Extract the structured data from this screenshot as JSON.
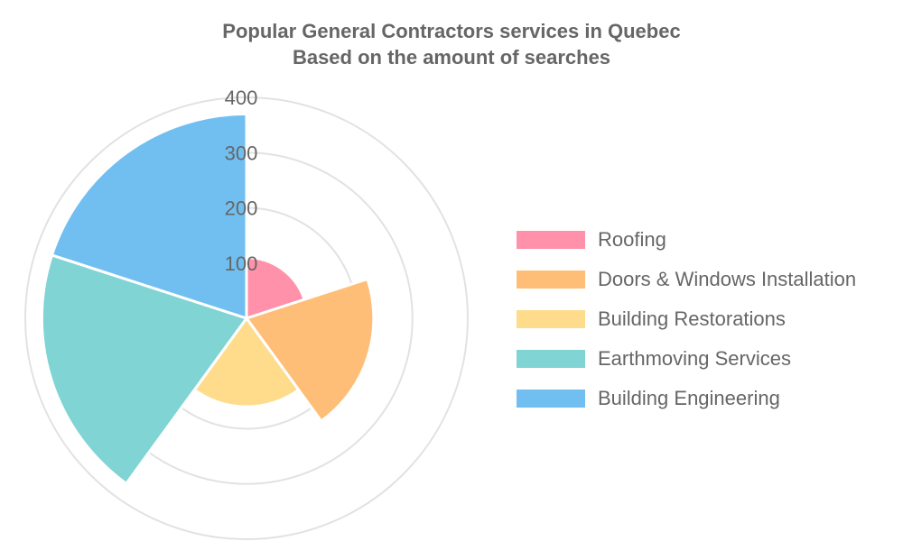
{
  "chart_data": {
    "type": "polarArea",
    "title": [
      "Popular General Contractors services in Quebec",
      "Based on the amount of searches"
    ],
    "rlim": [
      0,
      400
    ],
    "r_ticks": [
      100,
      200,
      300,
      400
    ],
    "grid": true,
    "legend_position": "right",
    "start_angle": "top",
    "direction": "clockwise",
    "categories": [
      "Roofing",
      "Doors & Windows Installation",
      "Building Restorations",
      "Earthmoving Services",
      "Building Engineering"
    ],
    "values": [
      110,
      230,
      160,
      370,
      370
    ],
    "colors": [
      "#ff91aa",
      "#ffbe78",
      "#ffdc8c",
      "#80d4d4",
      "#71bff1"
    ]
  }
}
